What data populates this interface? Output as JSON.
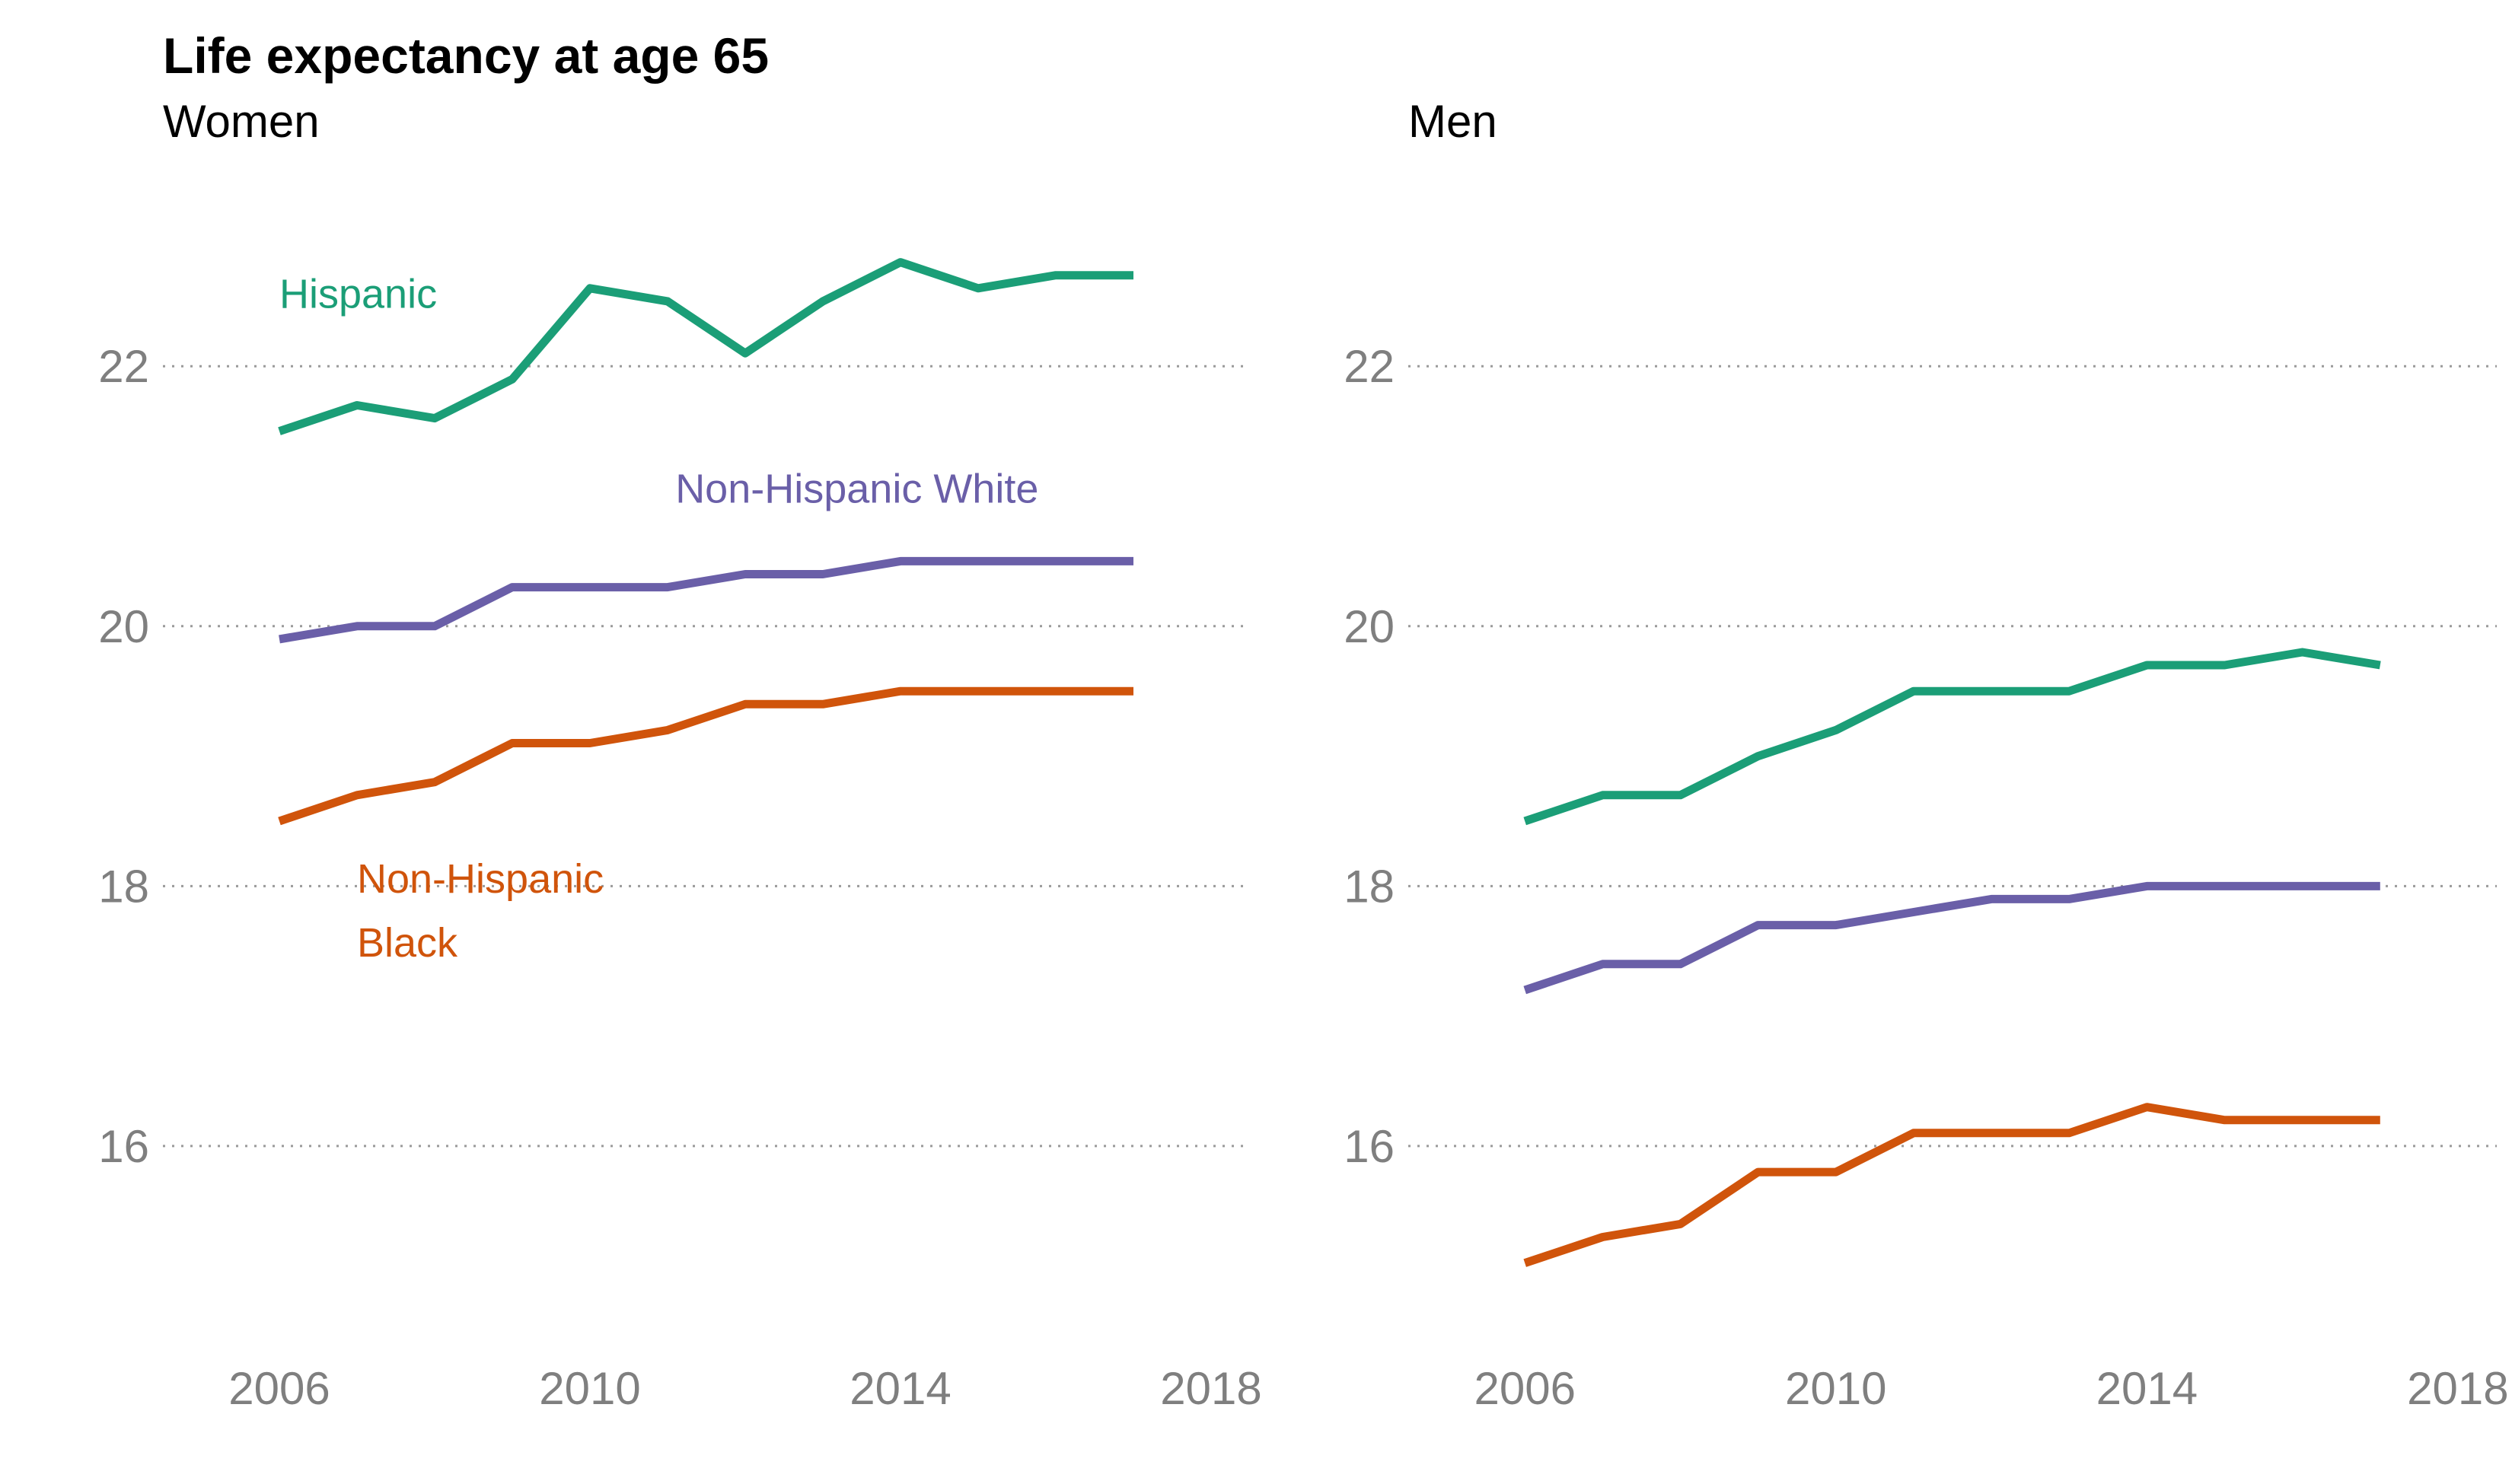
{
  "title": "Life expectancy at age 65",
  "chart_data": {
    "type": "line",
    "ylim": [
      14.6,
      23.6
    ],
    "xlim": [
      2004.5,
      2018.5
    ],
    "yticks": [
      16,
      18,
      20,
      22
    ],
    "xticks": [
      2006,
      2010,
      2014,
      2018
    ],
    "grid": "dotted horizontal",
    "colors": {
      "Hispanic": "#1b9e77",
      "Non-Hispanic White": "#6a5fa8",
      "Non-Hispanic Black": "#d0540b"
    },
    "x": [
      2006,
      2007,
      2008,
      2009,
      2010,
      2011,
      2012,
      2013,
      2014,
      2015,
      2016,
      2017
    ],
    "panels": [
      {
        "subtitle": "Women",
        "series": [
          {
            "name": "Hispanic",
            "label_lines": [
              "Hispanic"
            ],
            "values": [
              21.5,
              21.7,
              21.6,
              21.9,
              22.6,
              22.5,
              22.1,
              22.5,
              22.8,
              22.6,
              22.7,
              22.7
            ]
          },
          {
            "name": "Non-Hispanic White",
            "label_lines": [
              "Non-Hispanic White"
            ],
            "values": [
              19.9,
              20.0,
              20.0,
              20.3,
              20.3,
              20.3,
              20.4,
              20.4,
              20.5,
              20.5,
              20.5,
              20.5
            ]
          },
          {
            "name": "Non-Hispanic Black",
            "label_lines": [
              "Non-Hispanic",
              "Black"
            ],
            "values": [
              18.5,
              18.7,
              18.8,
              19.1,
              19.1,
              19.2,
              19.4,
              19.4,
              19.5,
              19.5,
              19.5,
              19.5
            ]
          }
        ]
      },
      {
        "subtitle": "Men",
        "series": [
          {
            "name": "Hispanic",
            "values": [
              18.5,
              18.7,
              18.7,
              19.0,
              19.2,
              19.5,
              19.5,
              19.5,
              19.7,
              19.7,
              19.8,
              19.7
            ]
          },
          {
            "name": "Non-Hispanic White",
            "values": [
              17.2,
              17.4,
              17.4,
              17.7,
              17.7,
              17.8,
              17.9,
              17.9,
              18.0,
              18.0,
              18.0,
              18.0
            ]
          },
          {
            "name": "Non-Hispanic Black",
            "values": [
              15.1,
              15.3,
              15.4,
              15.8,
              15.8,
              16.1,
              16.1,
              16.1,
              16.3,
              16.2,
              16.2,
              16.2
            ]
          }
        ]
      }
    ]
  }
}
